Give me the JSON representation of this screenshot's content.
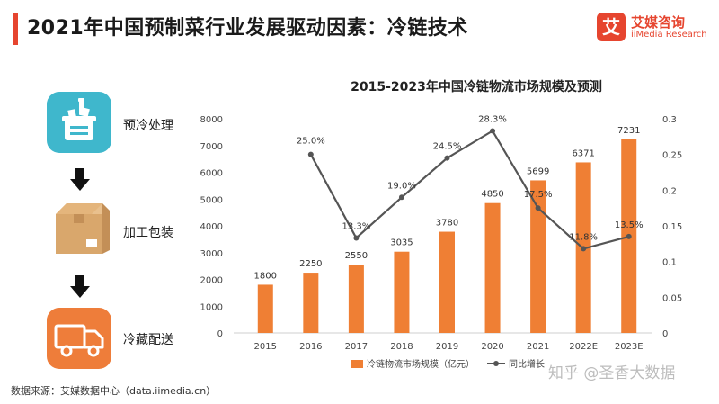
{
  "page": {
    "title": "2021年中国预制菜行业发展驱动因素：冷链技术",
    "accent_color": "#e6452f"
  },
  "brand": {
    "logo_char": "艾",
    "name_cn": "艾媒咨询",
    "name_en": "iiMedia Research",
    "color": "#e6452f"
  },
  "steps": [
    {
      "label": "预冷处理",
      "icon": "ice-bucket-icon",
      "bg": "#3fb7cc"
    },
    {
      "label": "加工包装",
      "icon": "package-box-icon",
      "bg": "#d9a76c"
    },
    {
      "label": "冷藏配送",
      "icon": "delivery-truck-icon",
      "bg": "#ee7d3a"
    }
  ],
  "chart_data": {
    "type": "bar+line",
    "title": "2015-2023年中国冷链物流市场规模及预测",
    "categories": [
      "2015",
      "2016",
      "2017",
      "2018",
      "2019",
      "2020",
      "2021",
      "2022E",
      "2023E"
    ],
    "series": [
      {
        "name": "冷链物流市场规模（亿元）",
        "type": "bar",
        "axis": "left",
        "color": "#ef7f34",
        "values": [
          1800,
          2250,
          2550,
          3035,
          3780,
          4850,
          5699,
          6371,
          7231
        ],
        "labels": [
          "1800",
          "2250",
          "2550",
          "3035",
          "3780",
          "4850",
          "5699",
          "6371",
          "7231"
        ]
      },
      {
        "name": "同比增长",
        "type": "line",
        "axis": "right",
        "color": "#555555",
        "values": [
          null,
          0.25,
          0.133,
          0.19,
          0.245,
          0.283,
          0.175,
          0.118,
          0.135
        ],
        "labels": [
          "",
          "25.0%",
          "13.3%",
          "19.0%",
          "24.5%",
          "28.3%",
          "17.5%",
          "11.8%",
          "13.5%"
        ]
      }
    ],
    "y_left": {
      "min": 0,
      "max": 8000,
      "ticks": [
        "0",
        "1000",
        "2000",
        "3000",
        "4000",
        "5000",
        "6000",
        "7000",
        "8000"
      ]
    },
    "y_right": {
      "min": 0,
      "max": 0.3,
      "ticks": [
        "0",
        "0.05",
        "0.1",
        "0.15",
        "0.2",
        "0.25",
        "0.3"
      ]
    },
    "grid": false,
    "legend_position": "bottom"
  },
  "source": "数据来源：艾媒数据中心（data.iimedia.cn）",
  "watermark": "知乎 @圣香大数据"
}
